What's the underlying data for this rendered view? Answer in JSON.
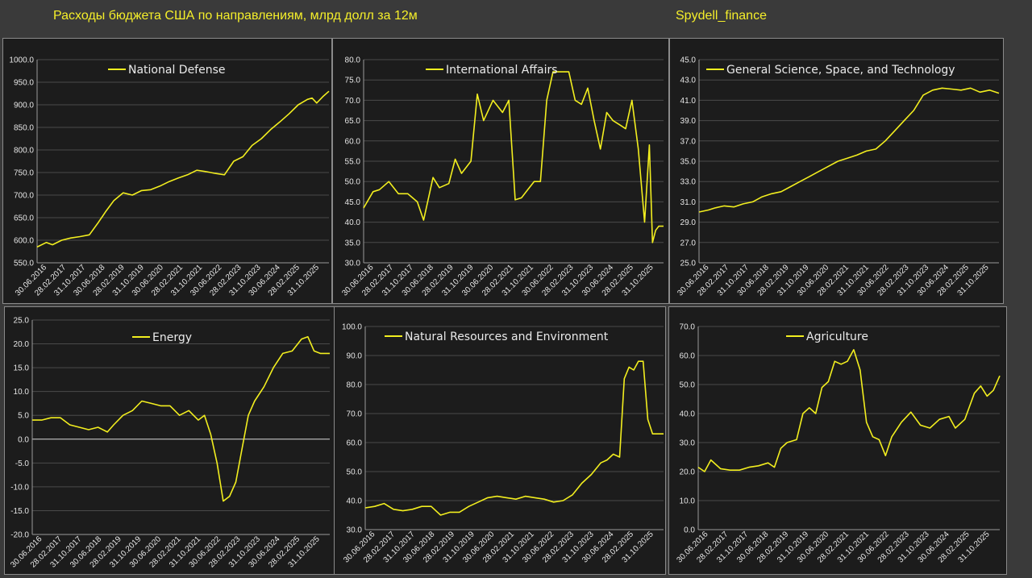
{
  "header": {
    "title": "Расходы бюджета США по направлениям, млрд долл за 12м",
    "brand": "Spydell_finance"
  },
  "colors": {
    "background": "#3a3a3a",
    "panel": "#1c1c1c",
    "series": "#f2ee1f",
    "title": "#f5ef2a"
  },
  "chart_data": [
    {
      "type": "line",
      "title": "National Defense",
      "ylim": [
        550,
        1000
      ],
      "yticks": [
        "1000.0",
        "950.0",
        "900.0",
        "850.0",
        "800.0",
        "750.0",
        "700.0",
        "650.0",
        "600.0",
        "550.0"
      ],
      "xticks": [
        "30.06.2016",
        "28.02.2017",
        "31.10.2017",
        "30.06.2018",
        "28.02.2019",
        "31.10.2019",
        "30.06.2020",
        "28.02.2021",
        "31.10.2021",
        "30.06.2022",
        "28.02.2023",
        "31.10.2023",
        "30.06.2024",
        "28.02.2025",
        "31.10.2025"
      ],
      "x": [
        2016.5,
        2016.8,
        2017.0,
        2017.3,
        2017.6,
        2017.9,
        2018.2,
        2018.5,
        2018.75,
        2019.0,
        2019.3,
        2019.6,
        2019.9,
        2020.2,
        2020.5,
        2020.8,
        2021.1,
        2021.4,
        2021.7,
        2022.0,
        2022.3,
        2022.6,
        2022.9,
        2023.2,
        2023.5,
        2023.8,
        2024.1,
        2024.4,
        2024.7,
        2025.0,
        2025.3,
        2025.45,
        2025.6,
        2025.8,
        2026.0
      ],
      "values": [
        585,
        595,
        590,
        600,
        605,
        608,
        612,
        640,
        665,
        688,
        705,
        700,
        710,
        712,
        720,
        730,
        738,
        745,
        755,
        752,
        748,
        745,
        775,
        785,
        810,
        825,
        845,
        862,
        880,
        900,
        912,
        915,
        904,
        918,
        930
      ]
    },
    {
      "type": "line",
      "title": "International Affairs",
      "ylim": [
        30,
        80
      ],
      "yticks": [
        "80.0",
        "75.0",
        "70.0",
        "65.0",
        "60.0",
        "55.0",
        "50.0",
        "45.0",
        "40.0",
        "35.0",
        "30.0"
      ],
      "xticks": [
        "30.06.2016",
        "28.02.2017",
        "31.10.2017",
        "30.06.2018",
        "28.02.2019",
        "31.10.2019",
        "30.06.2020",
        "28.02.2021",
        "31.10.2021",
        "30.06.2022",
        "28.02.2023",
        "31.10.2023",
        "30.06.2024",
        "28.02.2025",
        "31.10.2025"
      ],
      "x": [
        2016.5,
        2016.8,
        2017.0,
        2017.3,
        2017.6,
        2017.9,
        2018.2,
        2018.4,
        2018.7,
        2018.9,
        2019.2,
        2019.4,
        2019.6,
        2019.9,
        2020.1,
        2020.3,
        2020.6,
        2020.9,
        2021.1,
        2021.3,
        2021.5,
        2021.7,
        2021.9,
        2022.1,
        2022.3,
        2022.5,
        2022.8,
        2023.0,
        2023.2,
        2023.4,
        2023.6,
        2023.8,
        2024.0,
        2024.2,
        2024.4,
        2024.6,
        2024.8,
        2025.0,
        2025.2,
        2025.4,
        2025.55,
        2025.65,
        2025.75,
        2025.85,
        2026.0
      ],
      "values": [
        43.5,
        47.5,
        48,
        50,
        47,
        47,
        45,
        40.5,
        51,
        48.5,
        49.5,
        55.5,
        52,
        55,
        71.5,
        65,
        70,
        67,
        70,
        45.5,
        46,
        48,
        50,
        50,
        70,
        77,
        77,
        77,
        70,
        69,
        73,
        65,
        58,
        67,
        65,
        64,
        63,
        70,
        58,
        40,
        59,
        35,
        38,
        39,
        39
      ]
    },
    {
      "type": "line",
      "title": "General Science, Space, and Technology",
      "ylim": [
        25,
        45
      ],
      "yticks": [
        "45.0",
        "43.0",
        "41.0",
        "39.0",
        "37.0",
        "35.0",
        "33.0",
        "31.0",
        "29.0",
        "27.0",
        "25.0"
      ],
      "xticks": [
        "30.06.2016",
        "28.02.2017",
        "31.10.2017",
        "30.06.2018",
        "28.02.2019",
        "31.10.2019",
        "30.06.2020",
        "28.02.2021",
        "31.10.2021",
        "30.06.2022",
        "28.02.2023",
        "31.10.2023",
        "30.06.2024",
        "28.02.2025",
        "31.10.2025"
      ],
      "x": [
        2016.5,
        2016.8,
        2017.0,
        2017.3,
        2017.6,
        2017.9,
        2018.2,
        2018.5,
        2018.8,
        2019.1,
        2019.4,
        2019.7,
        2020.0,
        2020.3,
        2020.6,
        2020.9,
        2021.2,
        2021.5,
        2021.8,
        2022.1,
        2022.4,
        2022.7,
        2023.0,
        2023.3,
        2023.6,
        2023.9,
        2024.2,
        2024.5,
        2024.8,
        2025.1,
        2025.4,
        2025.7,
        2026.0
      ],
      "values": [
        30,
        30.2,
        30.4,
        30.6,
        30.5,
        30.8,
        31,
        31.5,
        31.8,
        32,
        32.5,
        33,
        33.5,
        34,
        34.5,
        35,
        35.3,
        35.6,
        36,
        36.2,
        37,
        38,
        39,
        40,
        41.5,
        42,
        42.2,
        42.1,
        42,
        42.2,
        41.8,
        42,
        41.7
      ]
    },
    {
      "type": "line",
      "title": "Energy",
      "ylim": [
        -20,
        25
      ],
      "yticks": [
        "25.0",
        "20.0",
        "15.0",
        "10.0",
        "5.0",
        "0.0",
        "-5.0",
        "-10.0",
        "-15.0",
        "-20.0"
      ],
      "xticks": [
        "30.06.2016",
        "28.02.2017",
        "31.10.2017",
        "30.06.2018",
        "28.02.2019",
        "31.10.2019",
        "30.06.2020",
        "28.02.2021",
        "31.10.2021",
        "30.06.2022",
        "28.02.2023",
        "31.10.2023",
        "30.06.2024",
        "28.02.2025",
        "31.10.2025"
      ],
      "x": [
        2016.5,
        2016.8,
        2017.1,
        2017.4,
        2017.7,
        2018.0,
        2018.3,
        2018.6,
        2018.9,
        2019.1,
        2019.4,
        2019.7,
        2020.0,
        2020.3,
        2020.6,
        2020.9,
        2021.2,
        2021.5,
        2021.8,
        2022.0,
        2022.2,
        2022.4,
        2022.6,
        2022.8,
        2023.0,
        2023.2,
        2023.4,
        2023.6,
        2023.9,
        2024.2,
        2024.5,
        2024.8,
        2025.1,
        2025.3,
        2025.5,
        2025.7,
        2026.0
      ],
      "values": [
        4,
        4,
        4.5,
        4.5,
        3,
        2.5,
        2,
        2.5,
        1.5,
        3,
        5,
        6,
        8,
        7.5,
        7,
        7,
        5,
        6,
        4,
        5,
        1,
        -5,
        -13,
        -12,
        -9,
        -2,
        5,
        8,
        11,
        15,
        18,
        18.5,
        21,
        21.5,
        18.5,
        18,
        18
      ]
    },
    {
      "type": "line",
      "title": "Natural Resources and Environment",
      "ylim": [
        30,
        100
      ],
      "yticks": [
        "100.0",
        "90.0",
        "80.0",
        "70.0",
        "60.0",
        "50.0",
        "40.0",
        "30.0"
      ],
      "xticks": [
        "30.06.2016",
        "28.02.2017",
        "31.10.2017",
        "30.06.2018",
        "28.02.2019",
        "31.10.2019",
        "30.06.2020",
        "28.02.2021",
        "31.10.2021",
        "30.06.2022",
        "28.02.2023",
        "31.10.2023",
        "30.06.2024",
        "28.02.2025",
        "31.10.2025"
      ],
      "x": [
        2016.5,
        2016.8,
        2017.1,
        2017.4,
        2017.7,
        2018.0,
        2018.3,
        2018.6,
        2018.9,
        2019.2,
        2019.5,
        2019.8,
        2020.1,
        2020.4,
        2020.7,
        2021.0,
        2021.3,
        2021.6,
        2021.9,
        2022.2,
        2022.5,
        2022.8,
        2023.1,
        2023.4,
        2023.7,
        2024.0,
        2024.2,
        2024.4,
        2024.6,
        2024.75,
        2024.9,
        2025.05,
        2025.2,
        2025.35,
        2025.5,
        2025.65,
        2025.8,
        2026.0
      ],
      "values": [
        37.5,
        38,
        39,
        37,
        36.5,
        37,
        38,
        38,
        35,
        36,
        36,
        38,
        39.5,
        41,
        41.5,
        41,
        40.5,
        41.5,
        41,
        40.5,
        39.5,
        40,
        42,
        46,
        49,
        53,
        54,
        56,
        55,
        82,
        86,
        85,
        88,
        88,
        68,
        63,
        63,
        63
      ]
    },
    {
      "type": "line",
      "title": "Agriculture",
      "ylim": [
        0,
        70
      ],
      "yticks": [
        "70.0",
        "60.0",
        "50.0",
        "40.0",
        "30.0",
        "20.0",
        "10.0",
        "0.0"
      ],
      "xticks": [
        "30.06.2016",
        "28.02.2017",
        "31.10.2017",
        "30.06.2018",
        "28.02.2019",
        "31.10.2019",
        "30.06.2020",
        "28.02.2021",
        "31.10.2021",
        "30.06.2022",
        "28.02.2023",
        "31.10.2023",
        "30.06.2024",
        "28.02.2025",
        "31.10.2025"
      ],
      "x": [
        2016.5,
        2016.7,
        2016.9,
        2017.2,
        2017.5,
        2017.8,
        2018.1,
        2018.4,
        2018.7,
        2018.9,
        2019.1,
        2019.3,
        2019.6,
        2019.8,
        2020.0,
        2020.2,
        2020.4,
        2020.6,
        2020.8,
        2021.0,
        2021.2,
        2021.4,
        2021.6,
        2021.8,
        2022.0,
        2022.2,
        2022.4,
        2022.6,
        2022.9,
        2023.2,
        2023.5,
        2023.8,
        2024.1,
        2024.4,
        2024.6,
        2024.9,
        2025.2,
        2025.4,
        2025.6,
        2025.8,
        2026.0
      ],
      "values": [
        21.5,
        20,
        24,
        21,
        20.5,
        20.5,
        21.5,
        22,
        23,
        21.5,
        28,
        30,
        31,
        40,
        42,
        40,
        49,
        51,
        58,
        57,
        58,
        62,
        55,
        37,
        32,
        31,
        25.5,
        32,
        37,
        40.5,
        36,
        35,
        38,
        39,
        35,
        38,
        47,
        49.5,
        46,
        48,
        53
      ]
    }
  ]
}
